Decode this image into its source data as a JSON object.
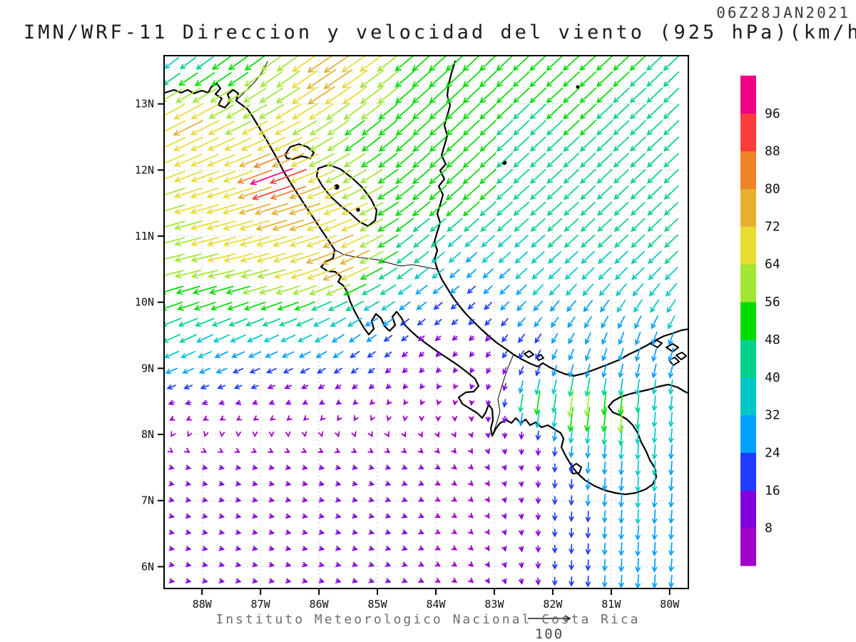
{
  "title": "IMN/WRF-11 Direccion y velocidad del viento (925 hPa)(km/h)",
  "timestamp": "06Z28JAN2021",
  "footer": "Instituto Meteorologico Nacional Costa Rica",
  "reference_vector": {
    "value": 100,
    "label": "100"
  },
  "axes": {
    "lat_ticks": [
      {
        "label": "13N",
        "lat": 13
      },
      {
        "label": "12N",
        "lat": 12
      },
      {
        "label": "11N",
        "lat": 11
      },
      {
        "label": "10N",
        "lat": 10
      },
      {
        "label": "9N",
        "lat": 9
      },
      {
        "label": "8N",
        "lat": 8
      },
      {
        "label": "7N",
        "lat": 7
      },
      {
        "label": "6N",
        "lat": 6
      }
    ],
    "lon_ticks": [
      {
        "label": "88W",
        "lon": -88
      },
      {
        "label": "87W",
        "lon": -87
      },
      {
        "label": "86W",
        "lon": -86
      },
      {
        "label": "85W",
        "lon": -85
      },
      {
        "label": "84W",
        "lon": -84
      },
      {
        "label": "83W",
        "lon": -83
      },
      {
        "label": "82W",
        "lon": -82
      },
      {
        "label": "81W",
        "lon": -81
      },
      {
        "label": "80W",
        "lon": -80
      }
    ]
  },
  "colorbar": {
    "levels": [
      8,
      16,
      24,
      32,
      40,
      48,
      56,
      64,
      72,
      80,
      88,
      96
    ],
    "colors": [
      "#a000c8",
      "#8200dc",
      "#1e3cff",
      "#00a0ff",
      "#00c8c8",
      "#00d28c",
      "#00dc00",
      "#a0e632",
      "#e6dc32",
      "#e6af2d",
      "#f08228",
      "#fa3c3c",
      "#f00082"
    ]
  },
  "chart_data": {
    "type": "vector_field",
    "title": "IMN/WRF-11 Direccion y velocidad del viento (925 hPa)(km/h)",
    "valid_time": "06Z28JAN2021",
    "units": "km/h",
    "level": "925 hPa",
    "domain": {
      "lon": [
        -88.65,
        -79.68
      ],
      "lat": [
        5.67,
        13.73
      ]
    },
    "legend_levels": [
      8,
      16,
      24,
      32,
      40,
      48,
      56,
      64,
      72,
      80,
      88,
      96
    ],
    "grid": {
      "lons": [
        -88.5,
        -87.5,
        -86.5,
        -85.5,
        -84.5,
        -83.5,
        -82.5,
        -81.5,
        -80.5,
        -79.5
      ],
      "lats": [
        5.5,
        6.5,
        7.5,
        8.5,
        9.5,
        10.5,
        11.5,
        12.5,
        13.5
      ],
      "u": [
        [
          9,
          9,
          9,
          9,
          8,
          6,
          2,
          -1,
          -2,
          -2
        ],
        [
          9,
          9,
          9,
          9,
          8,
          6,
          1,
          -1,
          -2,
          -2
        ],
        [
          8,
          9,
          9,
          9,
          8,
          6,
          1,
          -2,
          -2,
          -3
        ],
        [
          -12,
          -10,
          -9,
          -7,
          -4,
          -1,
          -3,
          -4,
          -3,
          -3
        ],
        [
          -40,
          -35,
          -32,
          -26,
          -14,
          -9,
          -14,
          -12,
          -10,
          -12
        ],
        [
          -58,
          -62,
          -64,
          -58,
          -34,
          -20,
          -26,
          -28,
          -28,
          -29
        ],
        [
          -60,
          -68,
          -74,
          -62,
          -40,
          -38,
          -34,
          -32,
          -31,
          -30
        ],
        [
          -60,
          -58,
          -60,
          -42,
          -38,
          -36,
          -34,
          -35,
          -34,
          -33
        ],
        [
          -30,
          -42,
          -48,
          -58,
          -42,
          -38,
          -36,
          -36,
          -35,
          -34
        ]
      ],
      "v": [
        [
          -2,
          -2,
          -2,
          -3,
          -3,
          -5,
          -12,
          -22,
          -30,
          -24
        ],
        [
          -2,
          -2,
          -2,
          -2,
          -3,
          -4,
          -10,
          -22,
          -32,
          -26
        ],
        [
          -2,
          -2,
          -2,
          -2,
          -3,
          -5,
          -10,
          -24,
          -34,
          -28
        ],
        [
          -4,
          -3,
          -4,
          -5,
          -6,
          -7,
          -16,
          -30,
          -32,
          -34
        ],
        [
          -18,
          -16,
          -15,
          -18,
          -11,
          -8,
          -18,
          -24,
          -28,
          -30
        ],
        [
          -14,
          -15,
          -18,
          -24,
          -26,
          -18,
          -24,
          -26,
          -27,
          -28
        ],
        [
          -18,
          -20,
          -24,
          -26,
          -32,
          -34,
          -30,
          -30,
          -29,
          -29
        ],
        [
          -30,
          -28,
          -30,
          -32,
          -34,
          -34,
          -32,
          -33,
          -32,
          -32
        ],
        [
          -24,
          -30,
          -36,
          -40,
          -36,
          -36,
          -34,
          -33,
          -33,
          -33
        ]
      ]
    },
    "features": [
      {
        "name": "papagayo-jet-max",
        "lon": -86.8,
        "lat": 11.9,
        "du": -30,
        "dv": -10,
        "r": 0.32
      },
      {
        "name": "nw-coast-max",
        "lon": -88.2,
        "lat": 12.9,
        "du": -14,
        "dv": -6,
        "r": 0.5
      },
      {
        "name": "fonseca-max",
        "lon": -85.9,
        "lat": 13.4,
        "du": -12,
        "dv": -6,
        "r": 0.45
      },
      {
        "name": "papagayo-coastal",
        "lon": -85.6,
        "lat": 10.6,
        "du": -14,
        "dv": -8,
        "r": 0.4
      },
      {
        "name": "panama-gap-west",
        "lon": -82.35,
        "lat": 8.45,
        "du": -5,
        "dv": -36,
        "r": 0.3
      },
      {
        "name": "panama-gap-mid",
        "lon": -81.6,
        "lat": 8.4,
        "du": -5,
        "dv": -38,
        "r": 0.35
      },
      {
        "name": "panama-gap-east",
        "lon": -80.9,
        "lat": 8.3,
        "du": -3,
        "dv": -32,
        "r": 0.35
      }
    ]
  }
}
